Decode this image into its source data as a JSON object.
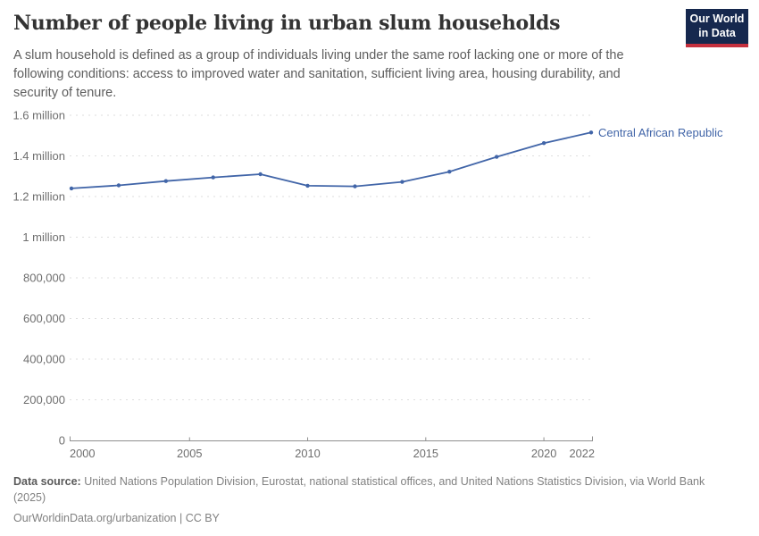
{
  "header": {
    "title": "Number of people living in urban slum households",
    "subtitle": "A slum household is defined as a group of individuals living under the same roof lacking one or more of the following conditions: access to improved water and sanitation, sufficient living area, housing durability, and security of tenure.",
    "logo": {
      "line1": "Our World",
      "line2": "in Data"
    }
  },
  "chart_data": {
    "type": "line",
    "title": "Number of people living in urban slum households",
    "xlabel": "",
    "ylabel": "",
    "xlim": [
      2000,
      2022
    ],
    "ylim": [
      0,
      1600000
    ],
    "grid": "horizontal-dashed",
    "legend_position": "end-of-line",
    "x": [
      2000,
      2002,
      2004,
      2006,
      2008,
      2010,
      2012,
      2014,
      2016,
      2018,
      2020,
      2022
    ],
    "series": [
      {
        "name": "Central African Republic",
        "color": "#4165a8",
        "values": [
          1240000,
          1255000,
          1276000,
          1294000,
          1310000,
          1253000,
          1250000,
          1272000,
          1322000,
          1395000,
          1463000,
          1515000
        ]
      }
    ],
    "yticks": [
      {
        "value": 0,
        "label": "0"
      },
      {
        "value": 200000,
        "label": "200,000"
      },
      {
        "value": 400000,
        "label": "400,000"
      },
      {
        "value": 600000,
        "label": "600,000"
      },
      {
        "value": 800000,
        "label": "800,000"
      },
      {
        "value": 1000000,
        "label": "1 million"
      },
      {
        "value": 1200000,
        "label": "1.2 million"
      },
      {
        "value": 1400000,
        "label": "1.4 million"
      },
      {
        "value": 1600000,
        "label": "1.6 million"
      }
    ],
    "xticks": [
      2000,
      2005,
      2010,
      2015,
      2020,
      2022
    ]
  },
  "footer": {
    "datasource_label": "Data source:",
    "datasource_text": " United Nations Population Division, Eurostat, national statistical offices, and United Nations Statistics Division, via World Bank (2025)",
    "attribution": "OurWorldinData.org/urbanization | CC BY"
  },
  "colors": {
    "line": "#4165a8",
    "logo_bg": "#16284e",
    "logo_accent": "#c5303e",
    "grid": "#dedede",
    "axis": "#8f8f8f",
    "tick_text": "#6e6e6e"
  }
}
